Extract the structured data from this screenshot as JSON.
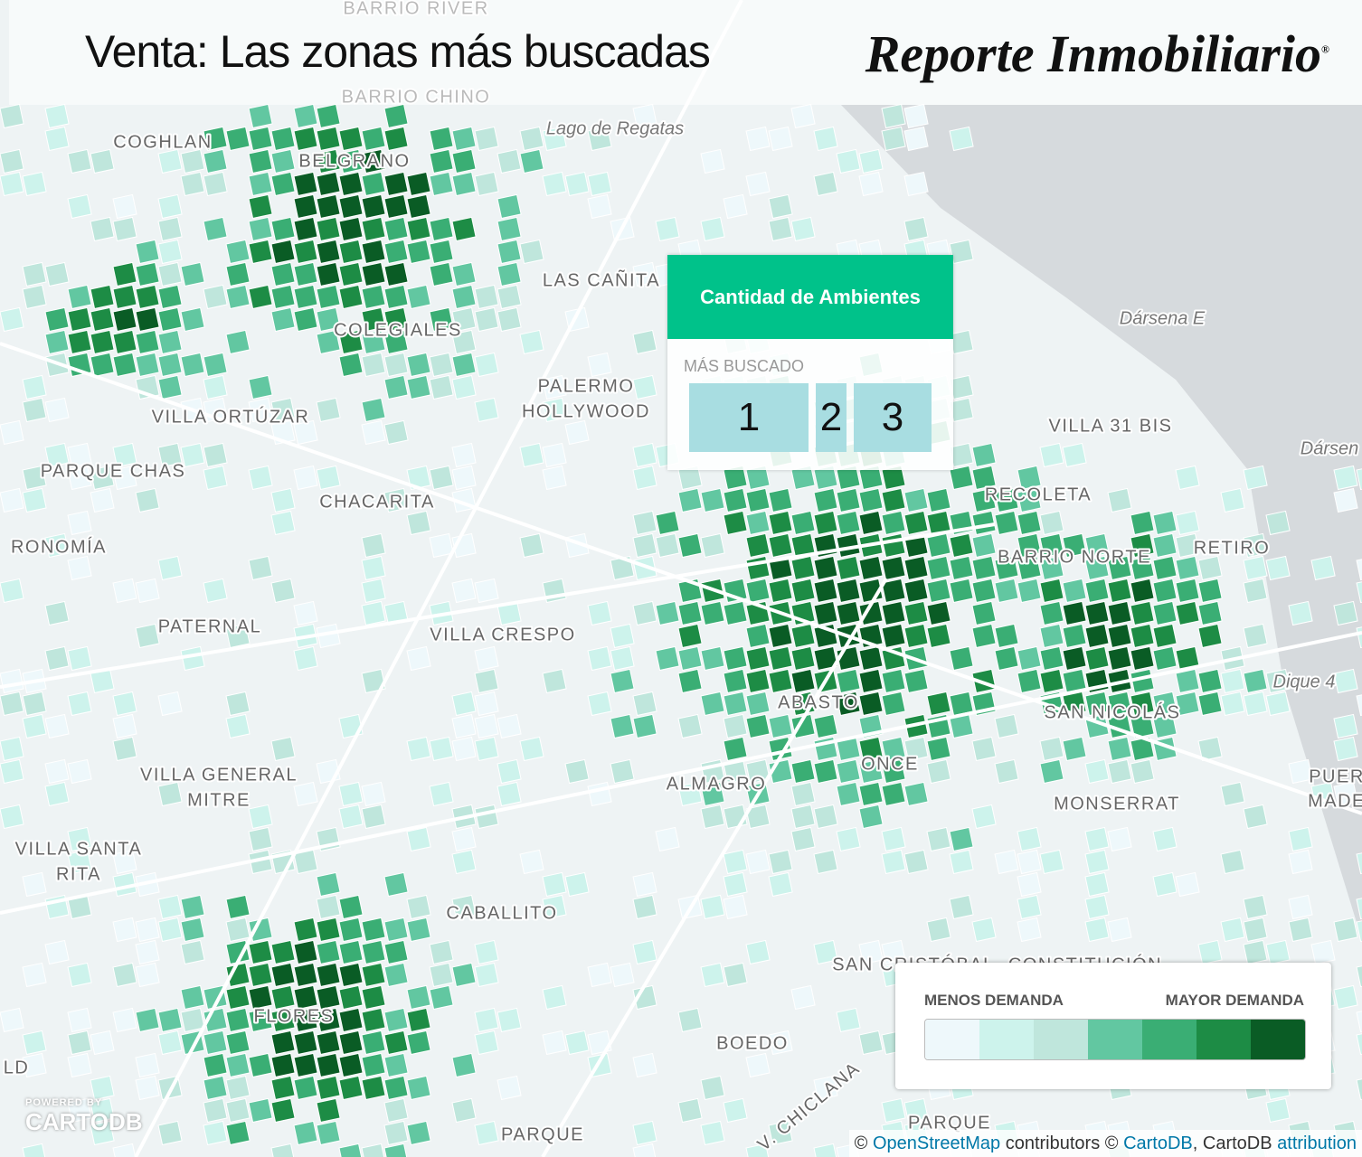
{
  "header": {
    "title": "Venta: Las zonas más buscadas",
    "brand": "Reporte Inmobiliario",
    "brand_mark": "®"
  },
  "map": {
    "labels": [
      "BARRIO RIVER",
      "BARRIO CHINO",
      "Lago de Regatas",
      "COGHLAN",
      "BELGRANO",
      "LAS CAÑITA",
      "Dársena E",
      "COLEGIALES",
      "PALERMO",
      "HOLLYWOOD",
      "VILLA ORTÚZAR",
      "VILLA 31 BIS",
      "Dársen",
      "PARQUE CHAS",
      "CHACARITA",
      "RECOLETA",
      "RONOMÍA",
      "RETIRO",
      "BARRIO NORTE",
      "PATERNAL",
      "VILLA CRESPO",
      "Dique 4",
      "ABASTO",
      "SAN NICOLÁS",
      "ONCE",
      "VILLA GENERAL",
      "MITRE",
      "ALMAGRO",
      "PUER",
      "MADE",
      "MONSERRAT",
      "VILLA SANTA",
      "RITA",
      "CABALLITO",
      "SAN CRISTÓBAL",
      "CONSTITUCIÓN",
      "FLORES",
      "BOEDO",
      "PARQUE",
      "V. CHICLANA",
      "PARQUE",
      "LD"
    ]
  },
  "panel": {
    "title": "Cantidad de Ambientes",
    "subtitle": "MÁS BUSCADO",
    "options": [
      "1",
      "2",
      "3"
    ]
  },
  "legend": {
    "low": "MENOS DEMANDA",
    "high": "MAYOR DEMANDA",
    "colors": [
      "#eef8fb",
      "#cdf3ec",
      "#bfe6dc",
      "#62c7a1",
      "#3aae74",
      "#1d8c45",
      "#0a5c25"
    ]
  },
  "branding": {
    "powered": "POWERED BY",
    "logo": "CARTODB"
  },
  "attribution": {
    "copy1": "©",
    "osm": "OpenStreetMap",
    "contrib": "contributors ©",
    "carto": "CartoDB",
    "sep": ", CartoDB",
    "attr": "attribution"
  }
}
